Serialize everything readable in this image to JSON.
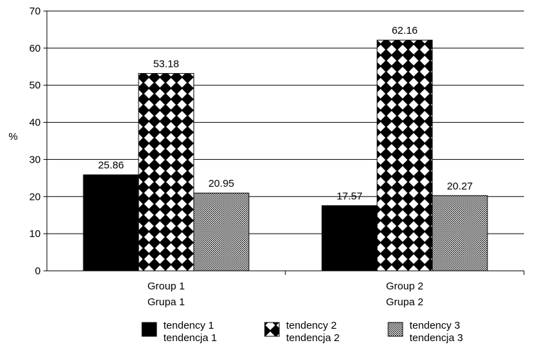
{
  "chart_data": {
    "type": "bar",
    "title": "",
    "xlabel": "",
    "ylabel": "%",
    "ylim": [
      0,
      70
    ],
    "yticks": [
      0,
      10,
      20,
      30,
      40,
      50,
      60,
      70
    ],
    "grid": true,
    "legend_position": "bottom",
    "categories": [
      [
        "Group 1",
        "Grupa 1"
      ],
      [
        "Group 2",
        "Grupa 2"
      ]
    ],
    "series": [
      {
        "name": [
          "tendency 1",
          "tendencja 1"
        ],
        "values": [
          25.86,
          17.57
        ],
        "labels": [
          "25.86",
          "17.57"
        ],
        "pattern": "solid-black"
      },
      {
        "name": [
          "tendency 2",
          "tendencja 2"
        ],
        "values": [
          53.18,
          62.16
        ],
        "labels": [
          "53.18",
          "62.16"
        ],
        "pattern": "checker-diamond"
      },
      {
        "name": [
          "tendency 3",
          "tendencja 3"
        ],
        "values": [
          20.95,
          20.27
        ],
        "labels": [
          "20.95",
          "20.27"
        ],
        "pattern": "fine-dots"
      }
    ],
    "colors": {
      "ink": "#000000",
      "background": "#ffffff"
    }
  }
}
